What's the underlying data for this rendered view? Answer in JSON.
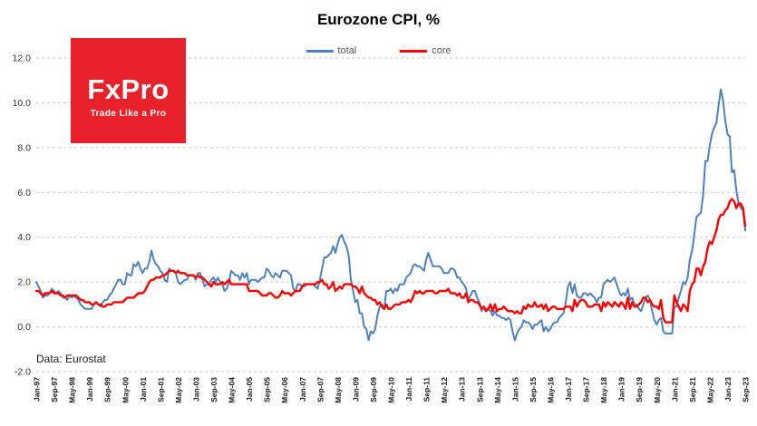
{
  "header": {
    "title": "Eurozone CPI, %"
  },
  "logo": {
    "name": "FxPro",
    "tagline": "Trade Like a Pro",
    "bg": "#e8212b"
  },
  "footer": {
    "source": "Data: Eurostat"
  },
  "colors": {
    "gridline": "#c9c9c9",
    "axis_text": "#333333",
    "x_label_text": "#1a1a1a"
  },
  "chart_data": {
    "type": "line",
    "title": "Eurozone CPI, %",
    "xlabel": "",
    "ylabel": "",
    "legend_position": "top",
    "grid": "horizontal-dashed",
    "ylim": [
      -2,
      12
    ],
    "y_ticks": [
      -2,
      0,
      2,
      4,
      6,
      8,
      10,
      12
    ],
    "tick_every_months": 8,
    "x_tick_labels": [
      "Jan-97",
      "Sep-97",
      "May-98",
      "Jan-99",
      "Sep-99",
      "May-00",
      "Jan-01",
      "Sep-01",
      "May-02",
      "Jan-03",
      "Sep-03",
      "May-04",
      "Jan-05",
      "Sep-05",
      "May-06",
      "Jan-07",
      "Sep-07",
      "May-08",
      "Jan-09",
      "Sep-09",
      "May-10",
      "Jan-11",
      "Sep-11",
      "May-12",
      "Jan-13",
      "Sep-13",
      "May-14",
      "Jan-15",
      "Sep-15",
      "May-16",
      "Jan-17",
      "Sep-17",
      "May-18",
      "Jan-19",
      "Sep-19",
      "May-20",
      "Jan-21",
      "Sep-21",
      "May-22",
      "Jan-23",
      "Sep-23"
    ],
    "series": [
      {
        "name": "total",
        "color": "#4f81bd",
        "values": [
          2.0,
          1.8,
          1.6,
          1.3,
          1.4,
          1.4,
          1.5,
          1.7,
          1.6,
          1.5,
          1.6,
          1.5,
          1.3,
          1.3,
          1.2,
          1.4,
          1.3,
          1.4,
          1.3,
          1.2,
          1.0,
          0.9,
          0.8,
          0.8,
          0.8,
          0.8,
          1.0,
          1.1,
          1.0,
          0.9,
          1.1,
          1.2,
          1.2,
          1.4,
          1.5,
          1.7,
          1.9,
          2.1,
          2.1,
          1.9,
          1.9,
          2.4,
          2.3,
          2.3,
          2.8,
          2.7,
          2.9,
          2.6,
          2.4,
          2.6,
          2.6,
          2.9,
          3.4,
          3.0,
          2.8,
          2.7,
          2.5,
          2.4,
          2.1,
          2.0,
          2.6,
          2.5,
          2.5,
          2.4,
          2.0,
          1.9,
          2.0,
          2.1,
          2.1,
          2.3,
          2.3,
          2.3,
          2.1,
          2.4,
          2.4,
          2.1,
          1.8,
          1.9,
          1.9,
          2.1,
          2.2,
          2.0,
          2.2,
          2.0,
          1.9,
          1.6,
          1.7,
          2.0,
          2.5,
          2.4,
          2.3,
          2.3,
          2.1,
          2.4,
          2.2,
          2.4,
          1.9,
          2.1,
          2.1,
          2.1,
          2.0,
          2.1,
          2.2,
          2.2,
          2.6,
          2.5,
          2.3,
          2.2,
          2.4,
          2.3,
          2.2,
          2.5,
          2.5,
          2.5,
          2.4,
          2.3,
          1.7,
          1.6,
          1.9,
          1.9,
          1.8,
          1.8,
          1.9,
          1.9,
          1.9,
          1.9,
          1.8,
          1.7,
          2.1,
          2.6,
          3.1,
          3.1,
          3.2,
          3.3,
          3.6,
          3.3,
          3.7,
          4.0,
          4.1,
          3.8,
          3.6,
          3.2,
          2.1,
          1.6,
          1.1,
          1.2,
          0.6,
          0.6,
          0.0,
          -0.1,
          -0.6,
          -0.2,
          -0.3,
          -0.1,
          0.5,
          0.9,
          1.0,
          0.8,
          1.6,
          1.6,
          1.7,
          1.5,
          1.7,
          1.6,
          1.9,
          1.9,
          1.9,
          2.2,
          2.3,
          2.4,
          2.7,
          2.8,
          2.7,
          2.7,
          2.6,
          2.5,
          3.0,
          3.3,
          3.0,
          2.7,
          2.7,
          2.7,
          2.7,
          2.6,
          2.4,
          2.4,
          2.4,
          2.6,
          2.6,
          2.5,
          2.2,
          2.2,
          2.0,
          1.9,
          1.7,
          1.2,
          1.4,
          1.6,
          1.6,
          1.3,
          1.1,
          0.7,
          0.9,
          0.8,
          0.8,
          0.7,
          0.5,
          0.7,
          0.5,
          0.5,
          0.4,
          0.4,
          0.3,
          0.4,
          0.3,
          -0.2,
          -0.6,
          -0.3,
          -0.1,
          0.0,
          0.3,
          0.2,
          0.2,
          0.1,
          -0.1,
          0.1,
          0.1,
          0.2,
          0.3,
          -0.2,
          0.0,
          -0.2,
          -0.1,
          0.1,
          0.2,
          0.2,
          0.4,
          0.5,
          0.6,
          1.1,
          1.8,
          2.0,
          1.5,
          1.9,
          1.4,
          1.3,
          1.3,
          1.5,
          1.5,
          1.4,
          1.5,
          1.4,
          1.3,
          1.1,
          1.3,
          1.3,
          1.9,
          2.0,
          2.1,
          2.0,
          2.1,
          2.2,
          1.9,
          1.6,
          1.4,
          1.5,
          1.4,
          1.7,
          1.2,
          1.3,
          1.0,
          1.0,
          0.8,
          0.7,
          1.0,
          1.3,
          1.4,
          1.2,
          0.7,
          0.3,
          0.1,
          0.3,
          0.4,
          -0.2,
          -0.3,
          -0.3,
          -0.3,
          -0.3,
          0.9,
          0.9,
          1.3,
          1.6,
          2.0,
          1.9,
          2.2,
          3.0,
          3.4,
          4.1,
          4.9,
          5.0,
          5.1,
          5.9,
          7.4,
          7.4,
          8.1,
          8.6,
          8.9,
          9.1,
          9.9,
          10.6,
          10.1,
          9.2,
          8.6,
          8.5,
          6.9,
          7.0,
          6.1,
          5.5,
          5.3,
          5.2,
          4.3
        ]
      },
      {
        "name": "core",
        "color": "#fe0000",
        "values": [
          1.6,
          1.6,
          1.5,
          1.4,
          1.5,
          1.5,
          1.5,
          1.6,
          1.5,
          1.5,
          1.5,
          1.4,
          1.4,
          1.3,
          1.4,
          1.4,
          1.4,
          1.4,
          1.4,
          1.3,
          1.2,
          1.2,
          1.1,
          1.1,
          1.1,
          1.0,
          1.0,
          1.1,
          1.0,
          1.0,
          0.9,
          0.9,
          1.0,
          1.0,
          1.0,
          1.1,
          1.1,
          1.1,
          1.1,
          1.1,
          1.2,
          1.3,
          1.3,
          1.3,
          1.3,
          1.4,
          1.5,
          1.5,
          1.5,
          1.6,
          1.8,
          2.0,
          2.1,
          2.1,
          2.2,
          2.2,
          2.2,
          2.3,
          2.3,
          2.4,
          2.5,
          2.5,
          2.5,
          2.4,
          2.5,
          2.4,
          2.4,
          2.4,
          2.3,
          2.3,
          2.3,
          2.3,
          2.2,
          2.3,
          2.2,
          2.2,
          2.1,
          2.0,
          1.9,
          1.8,
          2.0,
          1.9,
          1.9,
          1.9,
          2.0,
          1.9,
          2.0,
          2.1,
          1.9,
          1.9,
          1.9,
          1.9,
          1.9,
          1.9,
          1.9,
          1.9,
          1.6,
          1.6,
          1.6,
          1.6,
          1.6,
          1.5,
          1.4,
          1.4,
          1.4,
          1.5,
          1.5,
          1.4,
          1.3,
          1.3,
          1.4,
          1.6,
          1.5,
          1.5,
          1.5,
          1.4,
          1.5,
          1.6,
          1.6,
          1.6,
          1.8,
          1.9,
          1.9,
          1.9,
          1.9,
          1.9,
          1.9,
          2.0,
          2.0,
          2.1,
          1.9,
          1.9,
          1.7,
          1.8,
          2.0,
          1.6,
          1.7,
          1.8,
          1.7,
          1.9,
          1.9,
          1.9,
          1.9,
          1.8,
          1.8,
          1.7,
          1.5,
          1.8,
          1.5,
          1.4,
          1.3,
          1.3,
          1.2,
          1.2,
          1.0,
          1.1,
          0.9,
          0.8,
          1.0,
          0.8,
          0.8,
          0.9,
          1.0,
          1.0,
          1.0,
          1.1,
          1.1,
          1.1,
          1.2,
          1.1,
          1.3,
          1.6,
          1.5,
          1.6,
          1.5,
          1.5,
          1.6,
          1.6,
          1.6,
          1.6,
          1.5,
          1.5,
          1.6,
          1.6,
          1.6,
          1.6,
          1.7,
          1.5,
          1.5,
          1.5,
          1.4,
          1.5,
          1.3,
          1.3,
          1.5,
          1.1,
          1.2,
          1.2,
          1.1,
          1.1,
          1.0,
          0.8,
          0.9,
          0.7,
          0.8,
          1.0,
          0.7,
          1.0,
          0.7,
          0.8,
          0.8,
          0.9,
          0.8,
          0.7,
          0.7,
          0.7,
          0.6,
          0.7,
          0.6,
          0.6,
          0.9,
          0.8,
          1.0,
          0.9,
          0.9,
          1.1,
          0.9,
          0.9,
          1.0,
          0.8,
          1.0,
          0.7,
          0.8,
          0.9,
          0.9,
          0.8,
          0.8,
          0.8,
          0.8,
          0.9,
          0.9,
          0.9,
          0.7,
          1.2,
          0.9,
          1.1,
          1.2,
          1.2,
          1.1,
          0.9,
          0.9,
          0.9,
          1.0,
          1.0,
          1.0,
          0.7,
          1.1,
          0.9,
          1.1,
          1.0,
          0.9,
          1.1,
          1.0,
          0.9,
          1.1,
          1.0,
          0.8,
          1.3,
          0.8,
          1.1,
          0.9,
          0.9,
          1.0,
          1.1,
          1.3,
          1.3,
          1.1,
          1.2,
          1.0,
          0.9,
          0.9,
          0.8,
          1.2,
          0.4,
          0.2,
          0.2,
          0.2,
          0.2,
          1.4,
          1.1,
          0.9,
          0.7,
          1.0,
          0.9,
          0.7,
          1.6,
          1.9,
          2.0,
          2.6,
          2.6,
          2.3,
          2.7,
          2.9,
          3.5,
          3.8,
          3.7,
          4.0,
          4.3,
          4.8,
          5.0,
          5.0,
          5.2,
          5.3,
          5.6,
          5.7,
          5.6,
          5.3,
          5.5,
          5.5,
          5.3,
          4.5
        ]
      }
    ]
  }
}
